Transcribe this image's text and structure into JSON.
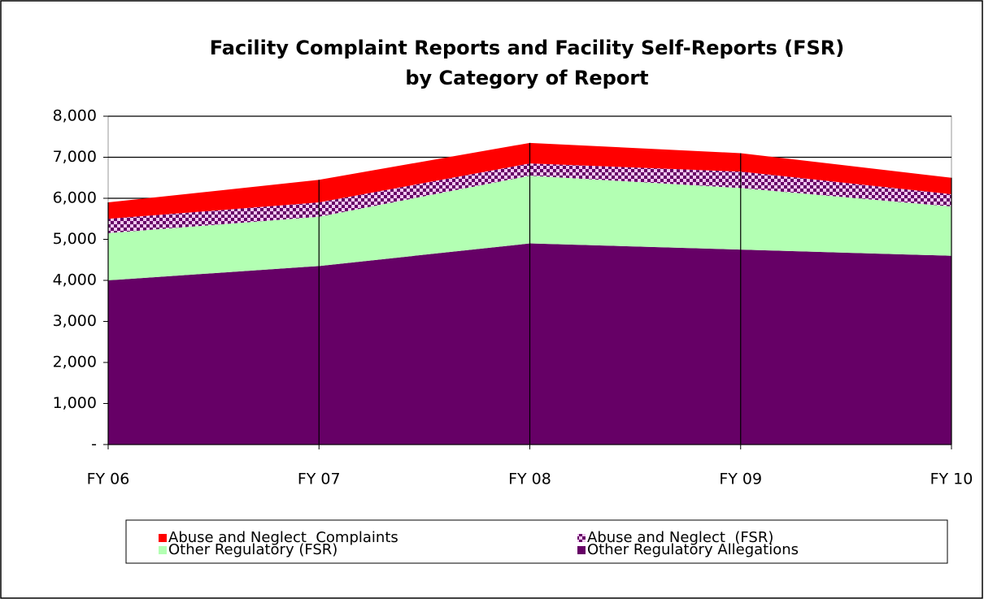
{
  "chart_data": {
    "type": "stacked_area",
    "title": [
      "Facility Complaint Reports and Facility Self-Reports (FSR)",
      "by Category of Report"
    ],
    "categories": [
      "FY 06",
      "FY 07",
      "FY 08",
      "FY 09",
      "FY 10"
    ],
    "series": [
      {
        "name": "Other Regulatory Allegations",
        "color": "#660066",
        "values": [
          4000,
          4350,
          4900,
          4750,
          4600
        ]
      },
      {
        "name": "Other Regulatory (FSR)",
        "color": "#b3ffb3",
        "values": [
          1150,
          1200,
          1650,
          1500,
          1200
        ]
      },
      {
        "name": "Abuse and Neglect  (FSR)",
        "color": "#660066",
        "pattern": "checker",
        "values": [
          350,
          350,
          300,
          400,
          300
        ]
      },
      {
        "name": "Abuse and Neglect  Complaints",
        "color": "#ff0000",
        "values": [
          400,
          550,
          500,
          450,
          400
        ]
      }
    ],
    "ylim": [
      0,
      8000
    ],
    "yticks": [
      {
        "value": 0,
        "label": "-"
      },
      {
        "value": 1000,
        "label": "1,000"
      },
      {
        "value": 2000,
        "label": "2,000"
      },
      {
        "value": 3000,
        "label": "3,000"
      },
      {
        "value": 4000,
        "label": "4,000"
      },
      {
        "value": 5000,
        "label": "5,000"
      },
      {
        "value": 6000,
        "label": "6,000"
      },
      {
        "value": 7000,
        "label": "7,000"
      },
      {
        "value": 8000,
        "label": "8,000"
      }
    ],
    "grid": true,
    "legend_order": [
      3,
      2,
      1,
      0
    ]
  }
}
